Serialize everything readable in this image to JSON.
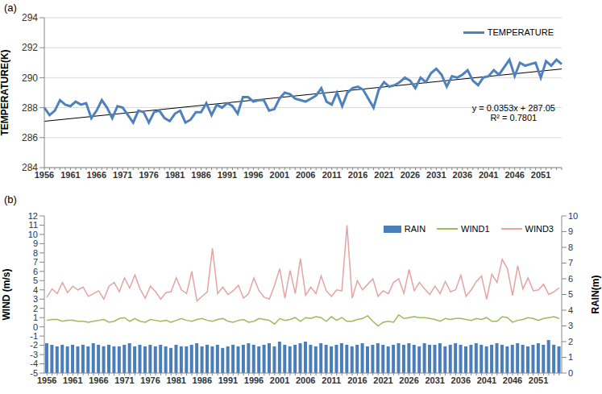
{
  "chart_data": [
    {
      "type": "line",
      "title": "(a)",
      "y_label": "TEMPERATURE(K)",
      "categories": [
        "1956",
        null,
        null,
        null,
        null,
        "1961",
        null,
        null,
        null,
        null,
        "1966",
        null,
        null,
        null,
        null,
        "1971",
        null,
        null,
        null,
        null,
        "1976",
        null,
        null,
        null,
        null,
        "1981",
        null,
        null,
        null,
        null,
        "1986",
        null,
        null,
        null,
        null,
        "1991",
        null,
        null,
        null,
        null,
        "1996",
        null,
        null,
        null,
        null,
        "2001",
        null,
        null,
        null,
        null,
        "2006",
        null,
        null,
        null,
        null,
        "2011",
        null,
        null,
        null,
        null,
        "2016",
        null,
        null,
        null,
        null,
        "2021",
        null,
        null,
        null,
        null,
        "2026",
        null,
        null,
        null,
        null,
        "2031",
        null,
        null,
        null,
        null,
        "2036",
        null,
        null,
        null,
        null,
        "2041",
        null,
        null,
        null,
        null,
        "2046",
        null,
        null,
        null,
        null,
        "2051",
        null,
        null,
        null,
        null
      ],
      "series": [
        {
          "name": "TEMPERATURE",
          "color": "#4f81bd",
          "values": [
            288.0,
            287.5,
            287.8,
            288.5,
            288.2,
            288.1,
            288.4,
            288.2,
            288.3,
            287.3,
            287.8,
            288.5,
            288.0,
            287.3,
            288.1,
            288.0,
            287.5,
            287.0,
            287.8,
            287.7,
            287.0,
            287.7,
            287.8,
            287.3,
            287.1,
            287.6,
            287.8,
            287.0,
            287.2,
            287.7,
            287.7,
            288.3,
            287.5,
            288.2,
            288.0,
            288.3,
            288.1,
            287.6,
            288.7,
            288.7,
            288.4,
            288.5,
            288.5,
            287.8,
            287.9,
            288.6,
            289.0,
            288.9,
            288.6,
            288.5,
            288.4,
            288.6,
            288.8,
            289.3,
            288.4,
            288.2,
            289.0,
            288.1,
            289.0,
            289.3,
            289.4,
            289.2,
            288.6,
            288.0,
            289.2,
            289.7,
            289.4,
            289.5,
            289.7,
            290.0,
            289.8,
            289.3,
            290.0,
            289.7,
            290.3,
            290.6,
            290.2,
            289.4,
            290.1,
            290.0,
            290.2,
            290.5,
            289.8,
            289.5,
            290.0,
            290.1,
            290.5,
            290.2,
            290.7,
            291.2,
            290.1,
            291.0,
            290.8,
            290.9,
            291.0,
            290.0,
            291.1,
            290.8,
            291.2,
            290.9
          ]
        }
      ],
      "trendline": {
        "start": 287.09,
        "end": 290.58,
        "color": "#000000"
      },
      "annotations": [
        "y = 0.0353x + 287.05",
        "R² = 0.7801"
      ],
      "ylim": [
        284,
        294
      ],
      "yticks": [
        284,
        286,
        288,
        290,
        292,
        294
      ],
      "grid": true,
      "legend": "top-right"
    },
    {
      "type": "line",
      "title": "(b)",
      "y_label": "WIND (m/s)",
      "y2_label": "RAIN(m)",
      "categories": [
        "1956",
        null,
        null,
        null,
        null,
        "1961",
        null,
        null,
        null,
        null,
        "1966",
        null,
        null,
        null,
        null,
        "1971",
        null,
        null,
        null,
        null,
        "1976",
        null,
        null,
        null,
        null,
        "1981",
        null,
        null,
        null,
        null,
        "1986",
        null,
        null,
        null,
        null,
        "1991",
        null,
        null,
        null,
        null,
        "1996",
        null,
        null,
        null,
        null,
        "2001",
        null,
        null,
        null,
        null,
        "2006",
        null,
        null,
        null,
        null,
        "2011",
        null,
        null,
        null,
        null,
        "2016",
        null,
        null,
        null,
        null,
        "2021",
        null,
        null,
        null,
        null,
        "2026",
        null,
        null,
        null,
        null,
        "2031",
        null,
        null,
        null,
        null,
        "2036",
        null,
        null,
        null,
        null,
        "2041",
        null,
        null,
        null,
        null,
        "2046",
        null,
        null,
        null,
        null,
        "2051",
        null,
        null,
        null,
        null
      ],
      "series": [
        {
          "name": "RAIN",
          "type": "bar",
          "axis": "y2",
          "color": "#4a7ebb",
          "values": [
            1.9,
            1.8,
            1.7,
            1.8,
            1.7,
            1.8,
            1.7,
            1.8,
            1.7,
            1.9,
            1.8,
            1.7,
            1.8,
            1.7,
            1.7,
            1.8,
            1.9,
            1.7,
            1.8,
            1.7,
            1.8,
            1.7,
            1.8,
            1.7,
            1.6,
            1.8,
            1.7,
            1.7,
            1.8,
            1.9,
            1.7,
            1.8,
            1.7,
            1.8,
            1.6,
            1.7,
            1.8,
            1.7,
            1.8,
            1.9,
            1.8,
            1.7,
            1.8,
            1.9,
            1.7,
            2.0,
            1.8,
            1.7,
            1.8,
            1.9,
            2.0,
            1.8,
            1.7,
            1.9,
            1.8,
            1.7,
            1.8,
            1.9,
            1.8,
            1.7,
            1.8,
            1.9,
            1.7,
            1.8,
            1.9,
            1.8,
            1.7,
            1.8,
            1.9,
            1.8,
            1.9,
            1.8,
            1.7,
            1.9,
            1.8,
            1.8,
            1.9,
            1.7,
            1.8,
            1.9,
            1.8,
            1.7,
            1.8,
            1.9,
            1.8,
            1.7,
            1.8,
            1.9,
            1.8,
            1.7,
            1.8,
            1.9,
            1.8,
            1.7,
            1.8,
            1.9,
            1.8,
            2.1,
            1.8,
            1.7
          ]
        },
        {
          "name": "WIND1",
          "type": "line",
          "color": "#9bbb59",
          "values": [
            0.7,
            0.8,
            0.8,
            0.6,
            0.7,
            0.7,
            0.6,
            0.6,
            0.5,
            0.6,
            0.7,
            0.8,
            0.5,
            0.6,
            0.9,
            1.0,
            0.6,
            0.9,
            0.6,
            0.5,
            0.8,
            0.7,
            0.6,
            0.7,
            0.5,
            0.7,
            0.9,
            0.7,
            0.6,
            0.8,
            0.9,
            0.7,
            0.6,
            0.8,
            0.9,
            0.6,
            0.5,
            0.7,
            0.8,
            0.5,
            0.6,
            0.9,
            0.8,
            0.7,
            0.3,
            0.9,
            0.7,
            0.8,
            1.0,
            0.6,
            1.0,
            0.9,
            1.1,
            1.0,
            0.6,
            1.1,
            0.7,
            1.0,
            0.6,
            0.6,
            0.8,
            0.9,
            1.2,
            0.6,
            0.1,
            0.5,
            0.6,
            0.5,
            1.3,
            0.9,
            1.0,
            1.1,
            1.0,
            1.0,
            0.9,
            0.8,
            0.6,
            0.9,
            0.8,
            0.9,
            0.9,
            0.8,
            0.7,
            0.9,
            0.8,
            1.0,
            0.6,
            0.6,
            1.1,
            1.0,
            0.5,
            0.7,
            0.8,
            1.0,
            0.9,
            0.7,
            0.9,
            1.0,
            1.1,
            0.9
          ]
        },
        {
          "name": "WIND3",
          "type": "line",
          "color": "#e6a3a3",
          "values": [
            3.2,
            4.1,
            3.6,
            4.8,
            3.7,
            4.4,
            4.0,
            4.3,
            3.3,
            3.6,
            3.9,
            3.0,
            4.4,
            4.8,
            3.8,
            5.3,
            4.2,
            5.6,
            4.1,
            3.1,
            4.4,
            3.8,
            3.0,
            3.7,
            3.8,
            5.3,
            4.0,
            3.6,
            6.0,
            2.8,
            3.3,
            3.8,
            8.5,
            3.6,
            4.3,
            3.5,
            3.9,
            4.5,
            3.1,
            3.6,
            5.3,
            3.9,
            3.2,
            3.0,
            4.5,
            6.3,
            3.1,
            6.1,
            3.6,
            7.4,
            3.4,
            4.3,
            3.6,
            5.5,
            3.9,
            3.3,
            4.0,
            3.9,
            11.0,
            3.1,
            5.0,
            4.0,
            4.6,
            5.2,
            3.3,
            3.9,
            3.6,
            4.8,
            5.2,
            3.6,
            6.2,
            3.9,
            4.8,
            4.1,
            3.5,
            4.4,
            3.6,
            4.9,
            3.8,
            4.0,
            5.6,
            3.3,
            4.0,
            4.9,
            5.5,
            3.0,
            5.7,
            4.8,
            7.3,
            6.3,
            3.4,
            6.6,
            4.1,
            5.3,
            3.9,
            4.0,
            4.6,
            3.5,
            3.8,
            4.2
          ]
        }
      ],
      "ylim": [
        -5,
        12
      ],
      "yticks": [
        -5,
        -4,
        -3,
        -2,
        -1,
        0,
        1,
        2,
        3,
        4,
        5,
        6,
        7,
        8,
        9,
        10,
        11,
        12
      ],
      "y2lim": [
        0,
        10
      ],
      "y2ticks": [
        0,
        1,
        2,
        3,
        4,
        5,
        6,
        7,
        8,
        9,
        10
      ],
      "grid": false,
      "legend": "top-right"
    }
  ]
}
